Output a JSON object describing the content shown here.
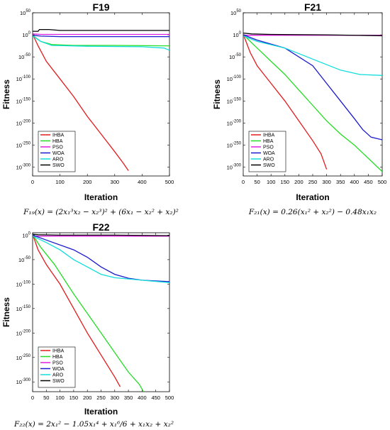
{
  "chart_data": [
    {
      "type": "line",
      "title": "F19",
      "xlabel": "Iteration",
      "ylabel": "Fitness",
      "xlim": [
        0,
        500
      ],
      "ylim_log10": [
        -320,
        50
      ],
      "y_scale": "log",
      "xticks": [
        "0",
        "100",
        "200",
        "300",
        "400",
        "500"
      ],
      "yticks": [
        {
          "base": "10",
          "exp": "50",
          "log": 50
        },
        {
          "base": "10",
          "exp": "0",
          "log": 0
        },
        {
          "base": "10",
          "exp": "-50",
          "log": -50
        },
        {
          "base": "10",
          "exp": "-100",
          "log": -100
        },
        {
          "base": "10",
          "exp": "-150",
          "log": -150
        },
        {
          "base": "10",
          "exp": "-200",
          "log": -200
        },
        {
          "base": "10",
          "exp": "-250",
          "log": -250
        },
        {
          "base": "10",
          "exp": "-300",
          "log": -300
        }
      ],
      "legend_position": "bottom-left",
      "formula": "F₁₉(x) = (2x₁³x₂ − x₂³)² + (6x₁ − x₂² + x₂)²",
      "series": [
        {
          "name": "IHBA",
          "color": "#e41a1c",
          "points": [
            [
              1,
              0
            ],
            [
              20,
              -25
            ],
            [
              50,
              -60
            ],
            [
              100,
              -100
            ],
            [
              150,
              -140
            ],
            [
              200,
              -185
            ],
            [
              250,
              -225
            ],
            [
              300,
              -265
            ],
            [
              330,
              -290
            ],
            [
              350,
              -308
            ]
          ]
        },
        {
          "name": "HBA",
          "color": "#22dd22",
          "points": [
            [
              1,
              -2
            ],
            [
              30,
              -15
            ],
            [
              70,
              -22
            ],
            [
              150,
              -24
            ],
            [
              300,
              -24
            ],
            [
              500,
              -25
            ]
          ]
        },
        {
          "name": "PSO",
          "color": "#e020e0",
          "points": [
            [
              1,
              2
            ],
            [
              30,
              1
            ],
            [
              100,
              1
            ],
            [
              300,
              1
            ],
            [
              500,
              1
            ]
          ]
        },
        {
          "name": "WOA",
          "color": "#1a1acc",
          "points": [
            [
              1,
              -1
            ],
            [
              30,
              -3
            ],
            [
              100,
              -4
            ],
            [
              300,
              -4
            ],
            [
              500,
              -4
            ]
          ]
        },
        {
          "name": "ARO",
          "color": "#11dddd",
          "points": [
            [
              1,
              -3
            ],
            [
              30,
              -15
            ],
            [
              70,
              -24
            ],
            [
              200,
              -26
            ],
            [
              400,
              -27
            ],
            [
              480,
              -30
            ],
            [
              500,
              -35
            ]
          ]
        },
        {
          "name": "SWO",
          "color": "#000000",
          "points": [
            [
              1,
              8
            ],
            [
              20,
              8
            ],
            [
              25,
              12
            ],
            [
              60,
              12
            ],
            [
              100,
              10
            ],
            [
              300,
              10
            ],
            [
              500,
              10
            ]
          ]
        }
      ]
    },
    {
      "type": "line",
      "title": "F21",
      "xlabel": "Iteration",
      "ylabel": "Fitness",
      "xlim": [
        0,
        500
      ],
      "ylim_log10": [
        -320,
        50
      ],
      "y_scale": "log",
      "xticks": [
        "0",
        "50",
        "100",
        "150",
        "200",
        "250",
        "300",
        "350",
        "400",
        "450",
        "500"
      ],
      "yticks": [
        {
          "base": "10",
          "exp": "50",
          "log": 50
        },
        {
          "base": "10",
          "exp": "0",
          "log": 0
        },
        {
          "base": "10",
          "exp": "-50",
          "log": -50
        },
        {
          "base": "10",
          "exp": "-100",
          "log": -100
        },
        {
          "base": "10",
          "exp": "-150",
          "log": -150
        },
        {
          "base": "10",
          "exp": "-200",
          "log": -200
        },
        {
          "base": "10",
          "exp": "-250",
          "log": -250
        },
        {
          "base": "10",
          "exp": "-300",
          "log": -300
        }
      ],
      "legend_position": "bottom-left",
      "formula": "F₂₁(x) = 0.26(x₁² + x₂²) − 0.48x₁x₂",
      "series": [
        {
          "name": "IHBA",
          "color": "#e41a1c",
          "points": [
            [
              1,
              0
            ],
            [
              25,
              -40
            ],
            [
              50,
              -70
            ],
            [
              100,
              -110
            ],
            [
              150,
              -150
            ],
            [
              200,
              -195
            ],
            [
              250,
              -240
            ],
            [
              280,
              -270
            ],
            [
              300,
              -305
            ]
          ]
        },
        {
          "name": "HBA",
          "color": "#22dd22",
          "points": [
            [
              1,
              0
            ],
            [
              50,
              -30
            ],
            [
              100,
              -60
            ],
            [
              150,
              -90
            ],
            [
              200,
              -125
            ],
            [
              250,
              -160
            ],
            [
              300,
              -195
            ],
            [
              350,
              -225
            ],
            [
              400,
              -250
            ],
            [
              450,
              -280
            ],
            [
              500,
              -310
            ]
          ]
        },
        {
          "name": "PSO",
          "color": "#e020e0",
          "points": [
            [
              1,
              -1
            ],
            [
              100,
              -1
            ],
            [
              300,
              -1
            ],
            [
              500,
              -1
            ]
          ]
        },
        {
          "name": "WOA",
          "color": "#1a1acc",
          "points": [
            [
              1,
              0
            ],
            [
              50,
              -12
            ],
            [
              150,
              -30
            ],
            [
              250,
              -70
            ],
            [
              300,
              -110
            ],
            [
              350,
              -150
            ],
            [
              400,
              -190
            ],
            [
              430,
              -215
            ],
            [
              460,
              -232
            ],
            [
              500,
              -238
            ]
          ]
        },
        {
          "name": "ARO",
          "color": "#11dddd",
          "points": [
            [
              1,
              -3
            ],
            [
              50,
              -15
            ],
            [
              150,
              -30
            ],
            [
              250,
              -55
            ],
            [
              350,
              -80
            ],
            [
              420,
              -90
            ],
            [
              500,
              -92
            ]
          ]
        },
        {
          "name": "SWO",
          "color": "#000000",
          "points": [
            [
              1,
              4
            ],
            [
              30,
              2
            ],
            [
              100,
              1
            ],
            [
              300,
              0
            ],
            [
              500,
              -2
            ]
          ]
        }
      ]
    },
    {
      "type": "line",
      "title": "F22",
      "xlabel": "Iteration",
      "ylabel": "Fitness",
      "xlim": [
        0,
        500
      ],
      "ylim_log10": [
        -320,
        5
      ],
      "y_scale": "log",
      "xticks": [
        "0",
        "50",
        "100",
        "150",
        "200",
        "250",
        "300",
        "350",
        "400",
        "450",
        "500"
      ],
      "yticks": [
        {
          "base": "10",
          "exp": "0",
          "log": 0
        },
        {
          "base": "10",
          "exp": "-50",
          "log": -50
        },
        {
          "base": "10",
          "exp": "-100",
          "log": -100
        },
        {
          "base": "10",
          "exp": "-150",
          "log": -150
        },
        {
          "base": "10",
          "exp": "-200",
          "log": -200
        },
        {
          "base": "10",
          "exp": "-250",
          "log": -250
        },
        {
          "base": "10",
          "exp": "-300",
          "log": -300
        }
      ],
      "legend_position": "bottom-left",
      "formula": "F₂₂(x) = 2x₁² − 1.05x₁⁴ + x₁⁶/6 + x₁x₂ + x₂²",
      "series": [
        {
          "name": "IHBA",
          "color": "#e41a1c",
          "points": [
            [
              1,
              0
            ],
            [
              20,
              -30
            ],
            [
              50,
              -60
            ],
            [
              100,
              -100
            ],
            [
              150,
              -150
            ],
            [
              200,
              -200
            ],
            [
              250,
              -245
            ],
            [
              300,
              -290
            ],
            [
              320,
              -310
            ]
          ]
        },
        {
          "name": "HBA",
          "color": "#22dd22",
          "points": [
            [
              1,
              0
            ],
            [
              30,
              -25
            ],
            [
              80,
              -60
            ],
            [
              150,
              -120
            ],
            [
              200,
              -160
            ],
            [
              250,
              -200
            ],
            [
              300,
              -240
            ],
            [
              350,
              -280
            ],
            [
              390,
              -305
            ],
            [
              410,
              -325
            ]
          ]
        },
        {
          "name": "PSO",
          "color": "#e020e0",
          "points": [
            [
              1,
              -2
            ],
            [
              100,
              -2
            ],
            [
              300,
              -2
            ],
            [
              500,
              -2
            ]
          ]
        },
        {
          "name": "WOA",
          "color": "#1a1acc",
          "points": [
            [
              1,
              0
            ],
            [
              50,
              -10
            ],
            [
              150,
              -30
            ],
            [
              200,
              -45
            ],
            [
              250,
              -65
            ],
            [
              300,
              -80
            ],
            [
              350,
              -88
            ],
            [
              400,
              -92
            ],
            [
              500,
              -95
            ]
          ]
        },
        {
          "name": "ARO",
          "color": "#11dddd",
          "points": [
            [
              1,
              -2
            ],
            [
              50,
              -15
            ],
            [
              100,
              -30
            ],
            [
              150,
              -50
            ],
            [
              200,
              -65
            ],
            [
              250,
              -80
            ],
            [
              300,
              -87
            ],
            [
              400,
              -92
            ],
            [
              500,
              -97
            ]
          ]
        },
        {
          "name": "SWO",
          "color": "#000000",
          "points": [
            [
              1,
              2
            ],
            [
              20,
              1
            ],
            [
              100,
              0
            ],
            [
              300,
              0
            ],
            [
              500,
              -1
            ]
          ]
        }
      ]
    }
  ]
}
